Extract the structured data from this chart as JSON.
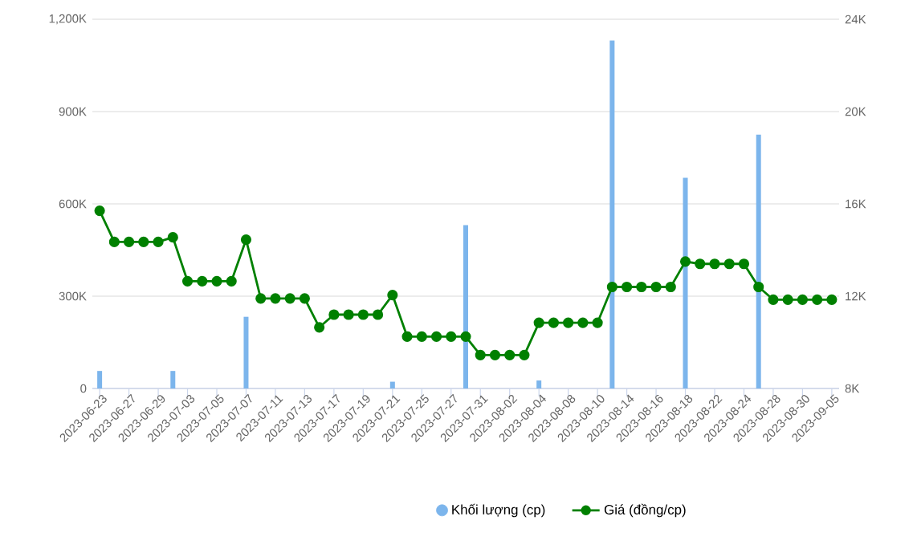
{
  "chart_data": {
    "type": "bar",
    "categories": [
      "2023-06-23",
      null,
      "2023-06-27",
      null,
      "2023-06-29",
      null,
      "2023-07-03",
      null,
      "2023-07-05",
      null,
      "2023-07-07",
      null,
      "2023-07-11",
      null,
      "2023-07-13",
      null,
      "2023-07-17",
      null,
      "2023-07-19",
      null,
      "2023-07-21",
      null,
      "2023-07-25",
      null,
      "2023-07-27",
      null,
      "2023-07-31",
      null,
      "2023-08-02",
      null,
      "2023-08-04",
      null,
      "2023-08-08",
      null,
      "2023-08-10",
      null,
      "2023-08-14",
      null,
      "2023-08-16",
      null,
      "2023-08-18",
      null,
      "2023-08-22",
      null,
      "2023-08-24",
      null,
      "2023-08-28",
      null,
      "2023-08-30",
      null,
      "2023-09-05"
    ],
    "series": [
      {
        "name": "Khối lượng (cp)",
        "color": "#7cb5ec",
        "values": [
          57000,
          null,
          null,
          null,
          null,
          57000,
          null,
          null,
          null,
          null,
          233000,
          null,
          null,
          null,
          null,
          null,
          null,
          null,
          null,
          null,
          22000,
          null,
          null,
          null,
          null,
          531000,
          null,
          null,
          null,
          null,
          26000,
          null,
          null,
          null,
          null,
          1131000,
          null,
          null,
          null,
          null,
          685000,
          null,
          null,
          null,
          null,
          825000,
          null,
          null,
          null,
          null,
          null
        ]
      },
      {
        "name": "Giá (đồng/cp)",
        "type": "line",
        "axis": "y2",
        "color": "#008000",
        "marker": "circle",
        "line_style": "solid",
        "values": [
          15700,
          14350,
          14350,
          14350,
          14350,
          14550,
          12650,
          12650,
          12650,
          12650,
          14450,
          11900,
          11900,
          11900,
          11900,
          10650,
          11200,
          11200,
          11200,
          11200,
          12050,
          10250,
          10250,
          10250,
          10250,
          10250,
          9450,
          9450,
          9450,
          9450,
          10850,
          10850,
          10850,
          10850,
          10850,
          12400,
          12400,
          12400,
          12400,
          12400,
          13500,
          13400,
          13400,
          13400,
          13400,
          12400,
          11850,
          11850,
          11850,
          11850,
          11850
        ]
      }
    ],
    "ylim": [
      0,
      1200000
    ],
    "yticks": [
      {
        "value": 0,
        "label": "0"
      },
      {
        "value": 300000,
        "label": "300K"
      },
      {
        "value": 600000,
        "label": "600K"
      },
      {
        "value": 900000,
        "label": "900K"
      },
      {
        "value": 1200000,
        "label": "1,200K"
      }
    ],
    "y2lim": [
      8000,
      24000
    ],
    "y2ticks": [
      {
        "value": 8000,
        "label": "8K"
      },
      {
        "value": 12000,
        "label": "12K"
      },
      {
        "value": 16000,
        "label": "16K"
      },
      {
        "value": 20000,
        "label": "20K"
      },
      {
        "value": 24000,
        "label": "24K"
      }
    ],
    "grid": "y",
    "legend": "bottom"
  }
}
